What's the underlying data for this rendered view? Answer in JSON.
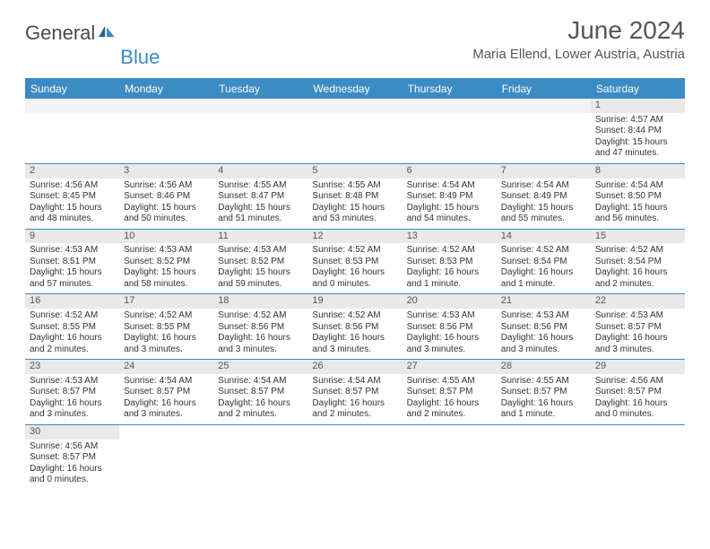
{
  "logo": {
    "text1": "General",
    "text2": "Blue"
  },
  "header": {
    "month_title": "June 2024",
    "location": "Maria Ellend, Lower Austria, Austria"
  },
  "colors": {
    "accent": "#3b8bc4",
    "header_text": "#555555",
    "body_text": "#333333",
    "shade": "#e9e9e9",
    "bg": "#ffffff"
  },
  "daynames": [
    "Sunday",
    "Monday",
    "Tuesday",
    "Wednesday",
    "Thursday",
    "Friday",
    "Saturday"
  ],
  "grid": {
    "leading_blanks": 6,
    "trailing_blanks": 6,
    "rows": 6,
    "cols": 7
  },
  "days": [
    {
      "n": "1",
      "sunrise": "Sunrise: 4:57 AM",
      "sunset": "Sunset: 8:44 PM",
      "daylight": "Daylight: 15 hours and 47 minutes."
    },
    {
      "n": "2",
      "sunrise": "Sunrise: 4:56 AM",
      "sunset": "Sunset: 8:45 PM",
      "daylight": "Daylight: 15 hours and 48 minutes."
    },
    {
      "n": "3",
      "sunrise": "Sunrise: 4:56 AM",
      "sunset": "Sunset: 8:46 PM",
      "daylight": "Daylight: 15 hours and 50 minutes."
    },
    {
      "n": "4",
      "sunrise": "Sunrise: 4:55 AM",
      "sunset": "Sunset: 8:47 PM",
      "daylight": "Daylight: 15 hours and 51 minutes."
    },
    {
      "n": "5",
      "sunrise": "Sunrise: 4:55 AM",
      "sunset": "Sunset: 8:48 PM",
      "daylight": "Daylight: 15 hours and 53 minutes."
    },
    {
      "n": "6",
      "sunrise": "Sunrise: 4:54 AM",
      "sunset": "Sunset: 8:49 PM",
      "daylight": "Daylight: 15 hours and 54 minutes."
    },
    {
      "n": "7",
      "sunrise": "Sunrise: 4:54 AM",
      "sunset": "Sunset: 8:49 PM",
      "daylight": "Daylight: 15 hours and 55 minutes."
    },
    {
      "n": "8",
      "sunrise": "Sunrise: 4:54 AM",
      "sunset": "Sunset: 8:50 PM",
      "daylight": "Daylight: 15 hours and 56 minutes."
    },
    {
      "n": "9",
      "sunrise": "Sunrise: 4:53 AM",
      "sunset": "Sunset: 8:51 PM",
      "daylight": "Daylight: 15 hours and 57 minutes."
    },
    {
      "n": "10",
      "sunrise": "Sunrise: 4:53 AM",
      "sunset": "Sunset: 8:52 PM",
      "daylight": "Daylight: 15 hours and 58 minutes."
    },
    {
      "n": "11",
      "sunrise": "Sunrise: 4:53 AM",
      "sunset": "Sunset: 8:52 PM",
      "daylight": "Daylight: 15 hours and 59 minutes."
    },
    {
      "n": "12",
      "sunrise": "Sunrise: 4:52 AM",
      "sunset": "Sunset: 8:53 PM",
      "daylight": "Daylight: 16 hours and 0 minutes."
    },
    {
      "n": "13",
      "sunrise": "Sunrise: 4:52 AM",
      "sunset": "Sunset: 8:53 PM",
      "daylight": "Daylight: 16 hours and 1 minute."
    },
    {
      "n": "14",
      "sunrise": "Sunrise: 4:52 AM",
      "sunset": "Sunset: 8:54 PM",
      "daylight": "Daylight: 16 hours and 1 minute."
    },
    {
      "n": "15",
      "sunrise": "Sunrise: 4:52 AM",
      "sunset": "Sunset: 8:54 PM",
      "daylight": "Daylight: 16 hours and 2 minutes."
    },
    {
      "n": "16",
      "sunrise": "Sunrise: 4:52 AM",
      "sunset": "Sunset: 8:55 PM",
      "daylight": "Daylight: 16 hours and 2 minutes."
    },
    {
      "n": "17",
      "sunrise": "Sunrise: 4:52 AM",
      "sunset": "Sunset: 8:55 PM",
      "daylight": "Daylight: 16 hours and 3 minutes."
    },
    {
      "n": "18",
      "sunrise": "Sunrise: 4:52 AM",
      "sunset": "Sunset: 8:56 PM",
      "daylight": "Daylight: 16 hours and 3 minutes."
    },
    {
      "n": "19",
      "sunrise": "Sunrise: 4:52 AM",
      "sunset": "Sunset: 8:56 PM",
      "daylight": "Daylight: 16 hours and 3 minutes."
    },
    {
      "n": "20",
      "sunrise": "Sunrise: 4:53 AM",
      "sunset": "Sunset: 8:56 PM",
      "daylight": "Daylight: 16 hours and 3 minutes."
    },
    {
      "n": "21",
      "sunrise": "Sunrise: 4:53 AM",
      "sunset": "Sunset: 8:56 PM",
      "daylight": "Daylight: 16 hours and 3 minutes."
    },
    {
      "n": "22",
      "sunrise": "Sunrise: 4:53 AM",
      "sunset": "Sunset: 8:57 PM",
      "daylight": "Daylight: 16 hours and 3 minutes."
    },
    {
      "n": "23",
      "sunrise": "Sunrise: 4:53 AM",
      "sunset": "Sunset: 8:57 PM",
      "daylight": "Daylight: 16 hours and 3 minutes."
    },
    {
      "n": "24",
      "sunrise": "Sunrise: 4:54 AM",
      "sunset": "Sunset: 8:57 PM",
      "daylight": "Daylight: 16 hours and 3 minutes."
    },
    {
      "n": "25",
      "sunrise": "Sunrise: 4:54 AM",
      "sunset": "Sunset: 8:57 PM",
      "daylight": "Daylight: 16 hours and 2 minutes."
    },
    {
      "n": "26",
      "sunrise": "Sunrise: 4:54 AM",
      "sunset": "Sunset: 8:57 PM",
      "daylight": "Daylight: 16 hours and 2 minutes."
    },
    {
      "n": "27",
      "sunrise": "Sunrise: 4:55 AM",
      "sunset": "Sunset: 8:57 PM",
      "daylight": "Daylight: 16 hours and 2 minutes."
    },
    {
      "n": "28",
      "sunrise": "Sunrise: 4:55 AM",
      "sunset": "Sunset: 8:57 PM",
      "daylight": "Daylight: 16 hours and 1 minute."
    },
    {
      "n": "29",
      "sunrise": "Sunrise: 4:56 AM",
      "sunset": "Sunset: 8:57 PM",
      "daylight": "Daylight: 16 hours and 0 minutes."
    },
    {
      "n": "30",
      "sunrise": "Sunrise: 4:56 AM",
      "sunset": "Sunset: 8:57 PM",
      "daylight": "Daylight: 16 hours and 0 minutes."
    }
  ]
}
